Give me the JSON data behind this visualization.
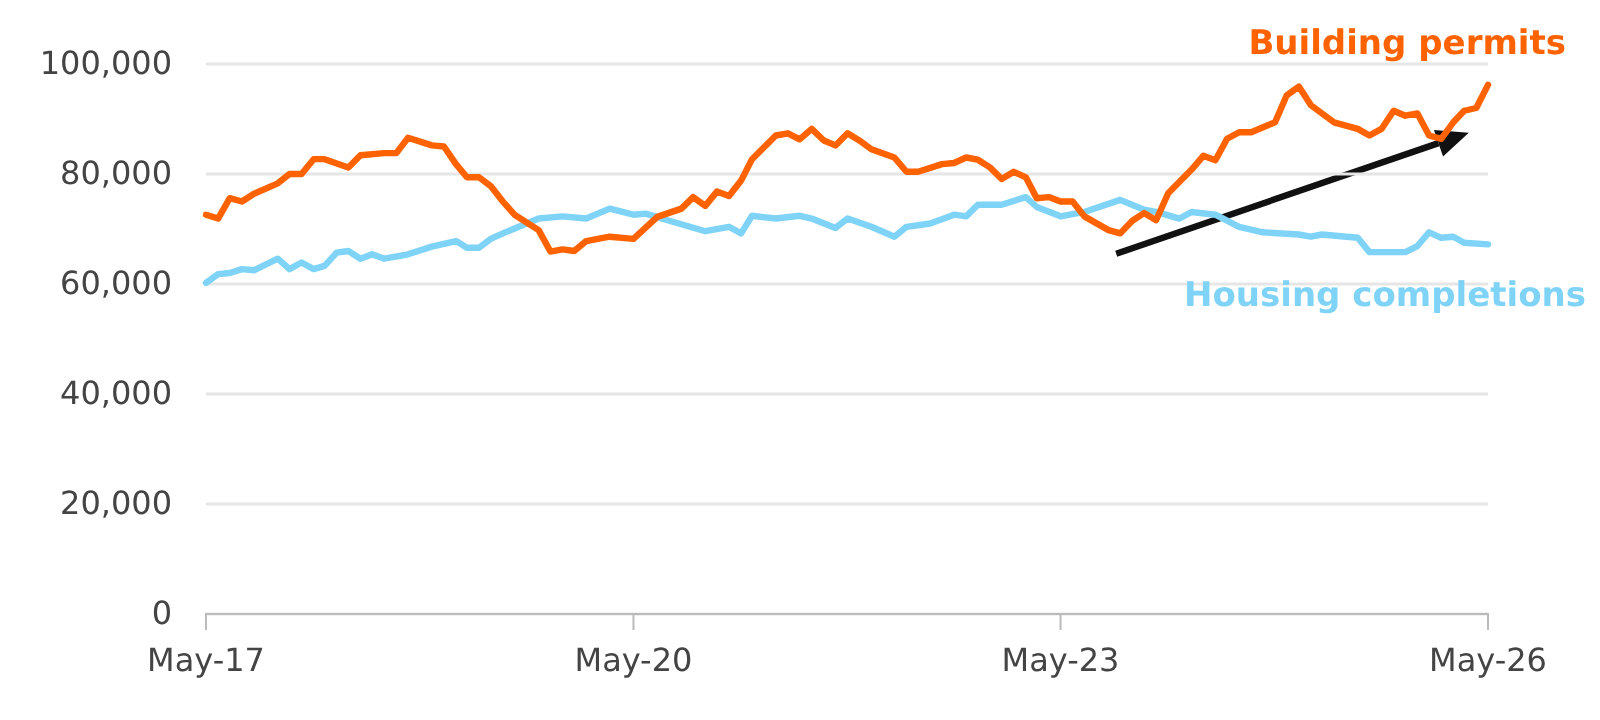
{
  "chart_data": {
    "type": "line",
    "x": [
      "2017-05",
      "2017-06",
      "2017-07",
      "2017-08",
      "2017-09",
      "2017-11",
      "2017-12",
      "2018-01",
      "2018-02",
      "2018-03",
      "2018-05",
      "2018-06",
      "2018-08",
      "2018-09",
      "2018-10",
      "2018-12",
      "2019-01",
      "2019-02",
      "2019-03",
      "2019-04",
      "2019-05",
      "2019-06",
      "2019-07",
      "2019-09",
      "2019-10",
      "2019-11",
      "2019-12",
      "2020-01",
      "2020-03",
      "2020-05",
      "2020-07",
      "2020-09",
      "2020-10",
      "2020-11",
      "2020-12",
      "2021-01",
      "2021-02",
      "2021-03",
      "2021-05",
      "2021-06",
      "2021-07",
      "2021-08",
      "2021-09",
      "2021-10",
      "2021-11",
      "2021-12",
      "2022-01",
      "2022-03",
      "2022-04",
      "2022-05",
      "2022-07",
      "2022-08",
      "2022-09",
      "2022-10",
      "2022-11",
      "2022-12",
      "2023-01",
      "2023-02",
      "2023-03",
      "2023-04",
      "2023-05",
      "2023-06",
      "2023-07",
      "2023-09",
      "2023-10",
      "2023-11",
      "2023-12",
      "2024-01",
      "2024-02",
      "2024-04",
      "2024-05",
      "2024-06",
      "2024-07",
      "2024-08",
      "2024-09",
      "2024-11",
      "2024-12",
      "2025-01",
      "2025-02",
      "2025-04",
      "2025-06",
      "2025-07",
      "2025-08",
      "2025-09",
      "2025-10",
      "2025-11",
      "2025-12",
      "2026-01",
      "2026-02",
      "2026-03",
      "2026-04",
      "2026-05"
    ],
    "series": [
      {
        "name": "Building permits",
        "color": "#ff6200",
        "values": [
          72600,
          71900,
          75600,
          75000,
          76400,
          78300,
          80000,
          80000,
          82700,
          82700,
          81200,
          83400,
          83800,
          83800,
          86600,
          85200,
          85000,
          81800,
          79400,
          79400,
          77800,
          75000,
          72600,
          69800,
          65900,
          66300,
          66000,
          67800,
          68600,
          68200,
          72200,
          73700,
          75800,
          74200,
          76800,
          76000,
          78800,
          82700,
          87000,
          87400,
          86300,
          88200,
          86100,
          85200,
          87400,
          86100,
          84500,
          83000,
          80400,
          80400,
          81800,
          82000,
          83000,
          82600,
          81200,
          79100,
          80400,
          79400,
          75600,
          75800,
          75000,
          75000,
          72300,
          69800,
          69200,
          71500,
          72900,
          71600,
          76500,
          80800,
          83300,
          82500,
          86400,
          87600,
          87600,
          89400,
          94300,
          95900,
          92500,
          89400,
          88200,
          87000,
          88200,
          91500,
          90600,
          91000,
          87000,
          86400,
          89400,
          91500,
          92000,
          96200
        ]
      },
      {
        "name": "Housing completions",
        "color": "#7fd3f7",
        "x": [
          "2017-05",
          "2017-06",
          "2017-07",
          "2017-08",
          "2017-09",
          "2017-11",
          "2017-12",
          "2018-01",
          "2018-02",
          "2018-03",
          "2018-04",
          "2018-05",
          "2018-06",
          "2018-07",
          "2018-08",
          "2018-10",
          "2018-12",
          "2019-02",
          "2019-03",
          "2019-04",
          "2019-05",
          "2019-06",
          "2019-08",
          "2019-09",
          "2019-11",
          "2020-01",
          "2020-03",
          "2020-05",
          "2020-06",
          "2020-08",
          "2020-11",
          "2021-01",
          "2021-02",
          "2021-03",
          "2021-05",
          "2021-07",
          "2021-08",
          "2021-10",
          "2021-11",
          "2022-01",
          "2022-03",
          "2022-04",
          "2022-06",
          "2022-08",
          "2022-09",
          "2022-10",
          "2022-12",
          "2023-02",
          "2023-03",
          "2023-05",
          "2023-07",
          "2023-10",
          "2023-12",
          "2024-01",
          "2024-03",
          "2024-04",
          "2024-06",
          "2024-08",
          "2024-10",
          "2025-01",
          "2025-02",
          "2025-03",
          "2025-06",
          "2025-07",
          "2025-10",
          "2025-11",
          "2025-12",
          "2026-01",
          "2026-02",
          "2026-03",
          "2026-05"
        ],
        "values": [
          60200,
          61800,
          62000,
          62700,
          62500,
          64600,
          62700,
          63900,
          62700,
          63300,
          65700,
          66000,
          64600,
          65400,
          64600,
          65400,
          66800,
          67800,
          66600,
          66600,
          68200,
          69200,
          71000,
          71900,
          72300,
          71900,
          73700,
          72600,
          72800,
          71500,
          69600,
          70400,
          69200,
          72400,
          71900,
          72400,
          71900,
          70200,
          71900,
          70400,
          68600,
          70400,
          71000,
          72600,
          72300,
          74400,
          74400,
          75800,
          74000,
          72300,
          73100,
          75300,
          73500,
          73100,
          71900,
          73100,
          72600,
          70400,
          69400,
          69000,
          68600,
          69000,
          68400,
          65800,
          65800,
          66900,
          69400,
          68400,
          68600,
          67500,
          67200
        ]
      }
    ],
    "xlim": [
      "2017-05",
      "2026-05"
    ],
    "xticks": [
      {
        "value": "2017-05",
        "label": "May-17"
      },
      {
        "value": "2020-05",
        "label": "May-20"
      },
      {
        "value": "2023-05",
        "label": "May-23"
      },
      {
        "value": "2026-05",
        "label": "May-26"
      }
    ],
    "ylim": [
      0,
      100000
    ],
    "yticks": [
      0,
      {
        "value": 20000,
        "label": "20,000"
      },
      {
        "value": 40000,
        "label": "40,000"
      },
      {
        "value": 60000,
        "label": "60,000"
      },
      {
        "value": 80000,
        "label": "80,000"
      },
      {
        "value": 100000,
        "label": "100,000"
      }
    ],
    "grid": "y",
    "marker": "none",
    "line_style": "solid"
  }
}
